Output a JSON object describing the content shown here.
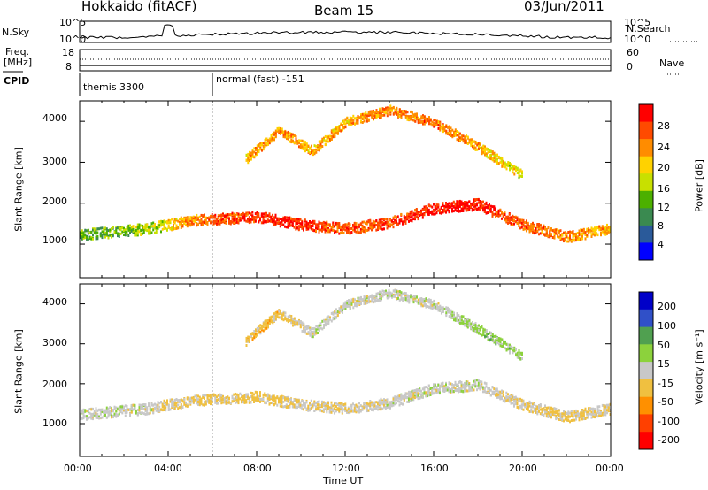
{
  "header": {
    "left_title": "Hokkaido (fitACF)",
    "center_title": "Beam 15",
    "right_title": "03/Jun/2011"
  },
  "summary": {
    "nsky_label": "N.Sky",
    "nsearch_label": "N.Search",
    "count_ticks_left": [
      "10^5",
      "10^0"
    ],
    "count_ticks_right": [
      "10^5",
      "10^0"
    ],
    "freq_label_line1": "Freq.",
    "freq_label_line2": "[MHz]",
    "freq_ticks": [
      "18",
      "8"
    ],
    "nave_ticks": [
      "60",
      "0"
    ],
    "nave_label": "Nave",
    "cpid_label": "CPID",
    "cpid_segments": [
      {
        "label": "themis 3300",
        "start_hour": 0
      },
      {
        "label": "normal (fast) -151",
        "start_hour": 6
      }
    ]
  },
  "power_panel": {
    "ylabel": "Slant Range [km]",
    "yticks": [
      "4000",
      "3000",
      "2000",
      "1000"
    ],
    "colorbar_label": "Power [dB]",
    "colorbar_ticks": [
      "28",
      "24",
      "20",
      "16",
      "12",
      "8",
      "4"
    ],
    "colorbar_colors": [
      "#ff0000",
      "#ff4a00",
      "#ff8c00",
      "#ffd200",
      "#c8e000",
      "#4cb000",
      "#3a8a50",
      "#2a5a9a",
      "#0000ff"
    ]
  },
  "velocity_panel": {
    "ylabel": "Slant Range [km]",
    "yticks": [
      "4000",
      "3000",
      "2000",
      "1000"
    ],
    "colorbar_label": "Velocity [m s⁻¹]",
    "colorbar_ticks": [
      "200",
      "100",
      "50",
      "15",
      "-15",
      "-50",
      "-100",
      "-200"
    ],
    "colorbar_colors": [
      "#0000c8",
      "#3050c8",
      "#50a050",
      "#8cd23c",
      "#c8c8c8",
      "#f0c040",
      "#ff9000",
      "#ff4000",
      "#ff0000"
    ]
  },
  "xaxis": {
    "ticks": [
      "00:00",
      "04:00",
      "08:00",
      "12:00",
      "16:00",
      "20:00",
      "00:00"
    ],
    "label": "Time UT"
  },
  "chart_data": [
    {
      "type": "heatmap",
      "title": "Power [dB]",
      "xlabel": "Time UT",
      "ylabel": "Slant Range [km]",
      "x_range_hours": [
        0,
        24
      ],
      "ylim": [
        180,
        4500
      ],
      "value_range": [
        0,
        30
      ],
      "bands": [
        {
          "t": [
            0,
            3,
            5,
            8,
            10,
            12,
            14,
            16,
            18,
            20,
            22,
            24
          ],
          "range_km": [
            1250,
            1400,
            1600,
            1700,
            1500,
            1400,
            1550,
            1900,
            2000,
            1500,
            1200,
            1400
          ],
          "power_db": [
            10,
            14,
            22,
            27,
            27,
            24,
            26,
            28,
            28,
            24,
            22,
            20
          ]
        },
        {
          "t": [
            7.5,
            9,
            10.5,
            12,
            14,
            16,
            18,
            20
          ],
          "range_km": [
            3100,
            3800,
            3300,
            4000,
            4300,
            4000,
            3400,
            2700
          ],
          "power_db": [
            20,
            22,
            20,
            20,
            22,
            24,
            20,
            16
          ]
        }
      ]
    },
    {
      "type": "heatmap",
      "title": "Velocity [m s⁻¹]",
      "xlabel": "Time UT",
      "ylabel": "Slant Range [km]",
      "x_range_hours": [
        0,
        24
      ],
      "ylim": [
        180,
        4500
      ],
      "value_range": [
        -200,
        200
      ],
      "bands": [
        {
          "t": [
            0,
            3,
            5,
            8,
            10,
            12,
            14,
            16,
            18,
            20,
            22,
            24
          ],
          "range_km": [
            1250,
            1400,
            1600,
            1700,
            1500,
            1400,
            1550,
            1900,
            2000,
            1500,
            1200,
            1400
          ],
          "velocity": [
            0,
            0,
            -30,
            -30,
            -20,
            -20,
            0,
            0,
            0,
            -20,
            -30,
            -10
          ]
        },
        {
          "t": [
            7.5,
            9,
            10.5,
            12,
            14,
            16,
            18,
            20
          ],
          "range_km": [
            3100,
            3800,
            3300,
            4000,
            4300,
            4000,
            3400,
            2700
          ],
          "velocity": [
            -40,
            -40,
            0,
            0,
            0,
            0,
            40,
            40
          ]
        }
      ]
    }
  ]
}
